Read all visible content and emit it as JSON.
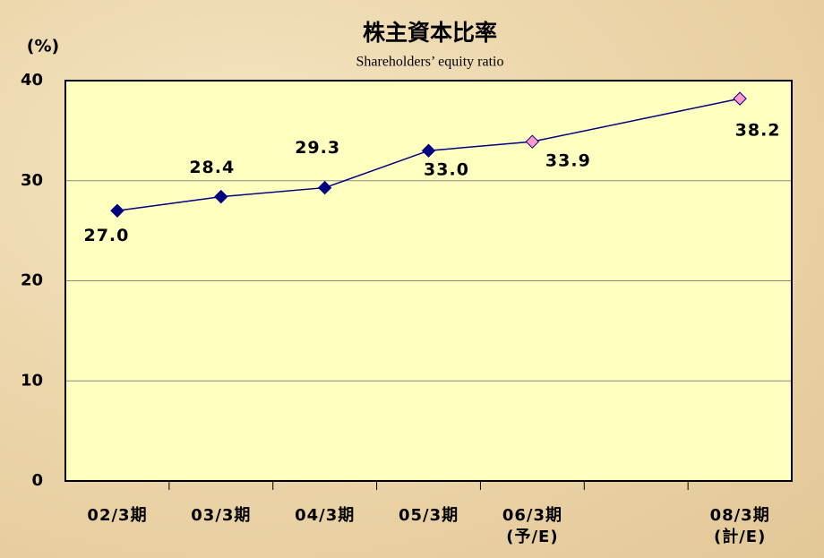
{
  "chart_data": {
    "type": "line",
    "title": "株主資本比率",
    "subtitle": "Shareholders’ equity ratio",
    "y_label": "(%)",
    "categories": [
      "02/3期",
      "03/3期",
      "04/3期",
      "05/3期",
      "06/3期\n(予/E)",
      null,
      "08/3期\n(計/E)"
    ],
    "series": [
      {
        "color": "#000080",
        "values": [
          27.0,
          28.4,
          29.3,
          33.0,
          33.9,
          null,
          38.2
        ],
        "value_labels": [
          "27.0",
          "28.4",
          "29.3",
          "33.0",
          "33.9",
          null,
          "38.2"
        ],
        "marker_colors": [
          "#000080",
          "#000080",
          "#000080",
          "#000080",
          "#ff99cc",
          null,
          "#ff99cc"
        ]
      }
    ],
    "ylim": [
      0,
      40
    ],
    "yticks": [
      0,
      10,
      20,
      30,
      40
    ],
    "grid": true
  }
}
